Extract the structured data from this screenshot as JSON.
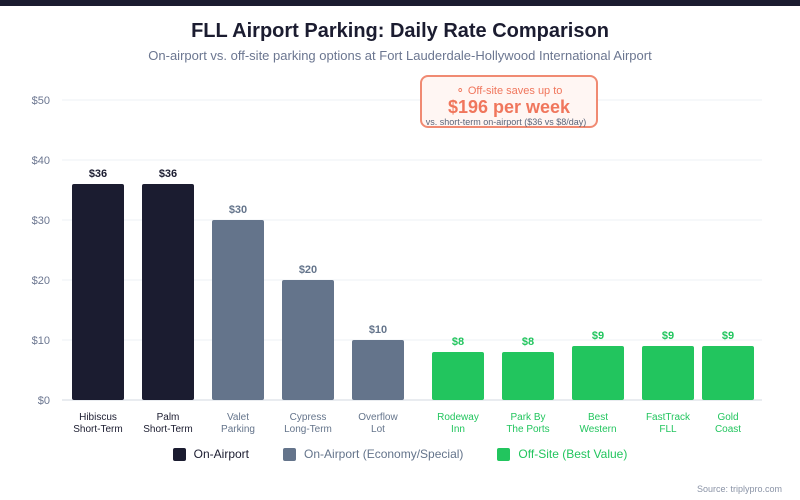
{
  "chart_data": {
    "type": "bar",
    "title": "FLL Airport Parking: Daily Rate Comparison",
    "subtitle": "On-airport vs. off-site parking options at Fort Lauderdale-Hollywood International Airport",
    "categories": [
      [
        "Hibiscus",
        "Short-Term"
      ],
      [
        "Palm",
        "Short-Term"
      ],
      [
        "Valet",
        "Parking"
      ],
      [
        "Cypress",
        "Long-Term"
      ],
      [
        "Overflow",
        "Lot"
      ],
      [
        "Rodeway",
        "Inn"
      ],
      [
        "Park By",
        "The Ports"
      ],
      [
        "Best",
        "Western"
      ],
      [
        "FastTrack",
        "FLL"
      ],
      [
        "Gold",
        "Coast"
      ]
    ],
    "values": [
      36,
      36,
      30,
      20,
      10,
      8,
      8,
      9,
      9,
      9
    ],
    "value_labels": [
      "$36",
      "$36",
      "$30",
      "$20",
      "$10",
      "$8",
      "$8",
      "$9",
      "$9",
      "$9"
    ],
    "groups": [
      0,
      0,
      1,
      1,
      1,
      2,
      2,
      2,
      2,
      2
    ],
    "ylim": [
      0,
      50
    ],
    "yticks": [
      0,
      10,
      20,
      30,
      40,
      50
    ],
    "ytick_labels": [
      "$0",
      "$10",
      "$20",
      "$30",
      "$40",
      "$50"
    ],
    "grid": true,
    "legend_placement": "bottom",
    "legend": [
      {
        "label": "On-Airport",
        "color": "#1b1c30",
        "text_color": "#1b1c30"
      },
      {
        "label": "On-Airport (Economy/Special)",
        "color": "#64748b",
        "text_color": "#64748b"
      },
      {
        "label": "Off-Site (Best Value)",
        "color": "#22c55e",
        "text_color": "#22c55e"
      }
    ],
    "annotation": {
      "icon": "lightbulb-icon",
      "line1": "Off-site saves up to",
      "line2": "$196 per week",
      "line3": "vs. short-term on-airport ($36 vs $8/day)"
    },
    "source": "Source: triplypro.com"
  }
}
